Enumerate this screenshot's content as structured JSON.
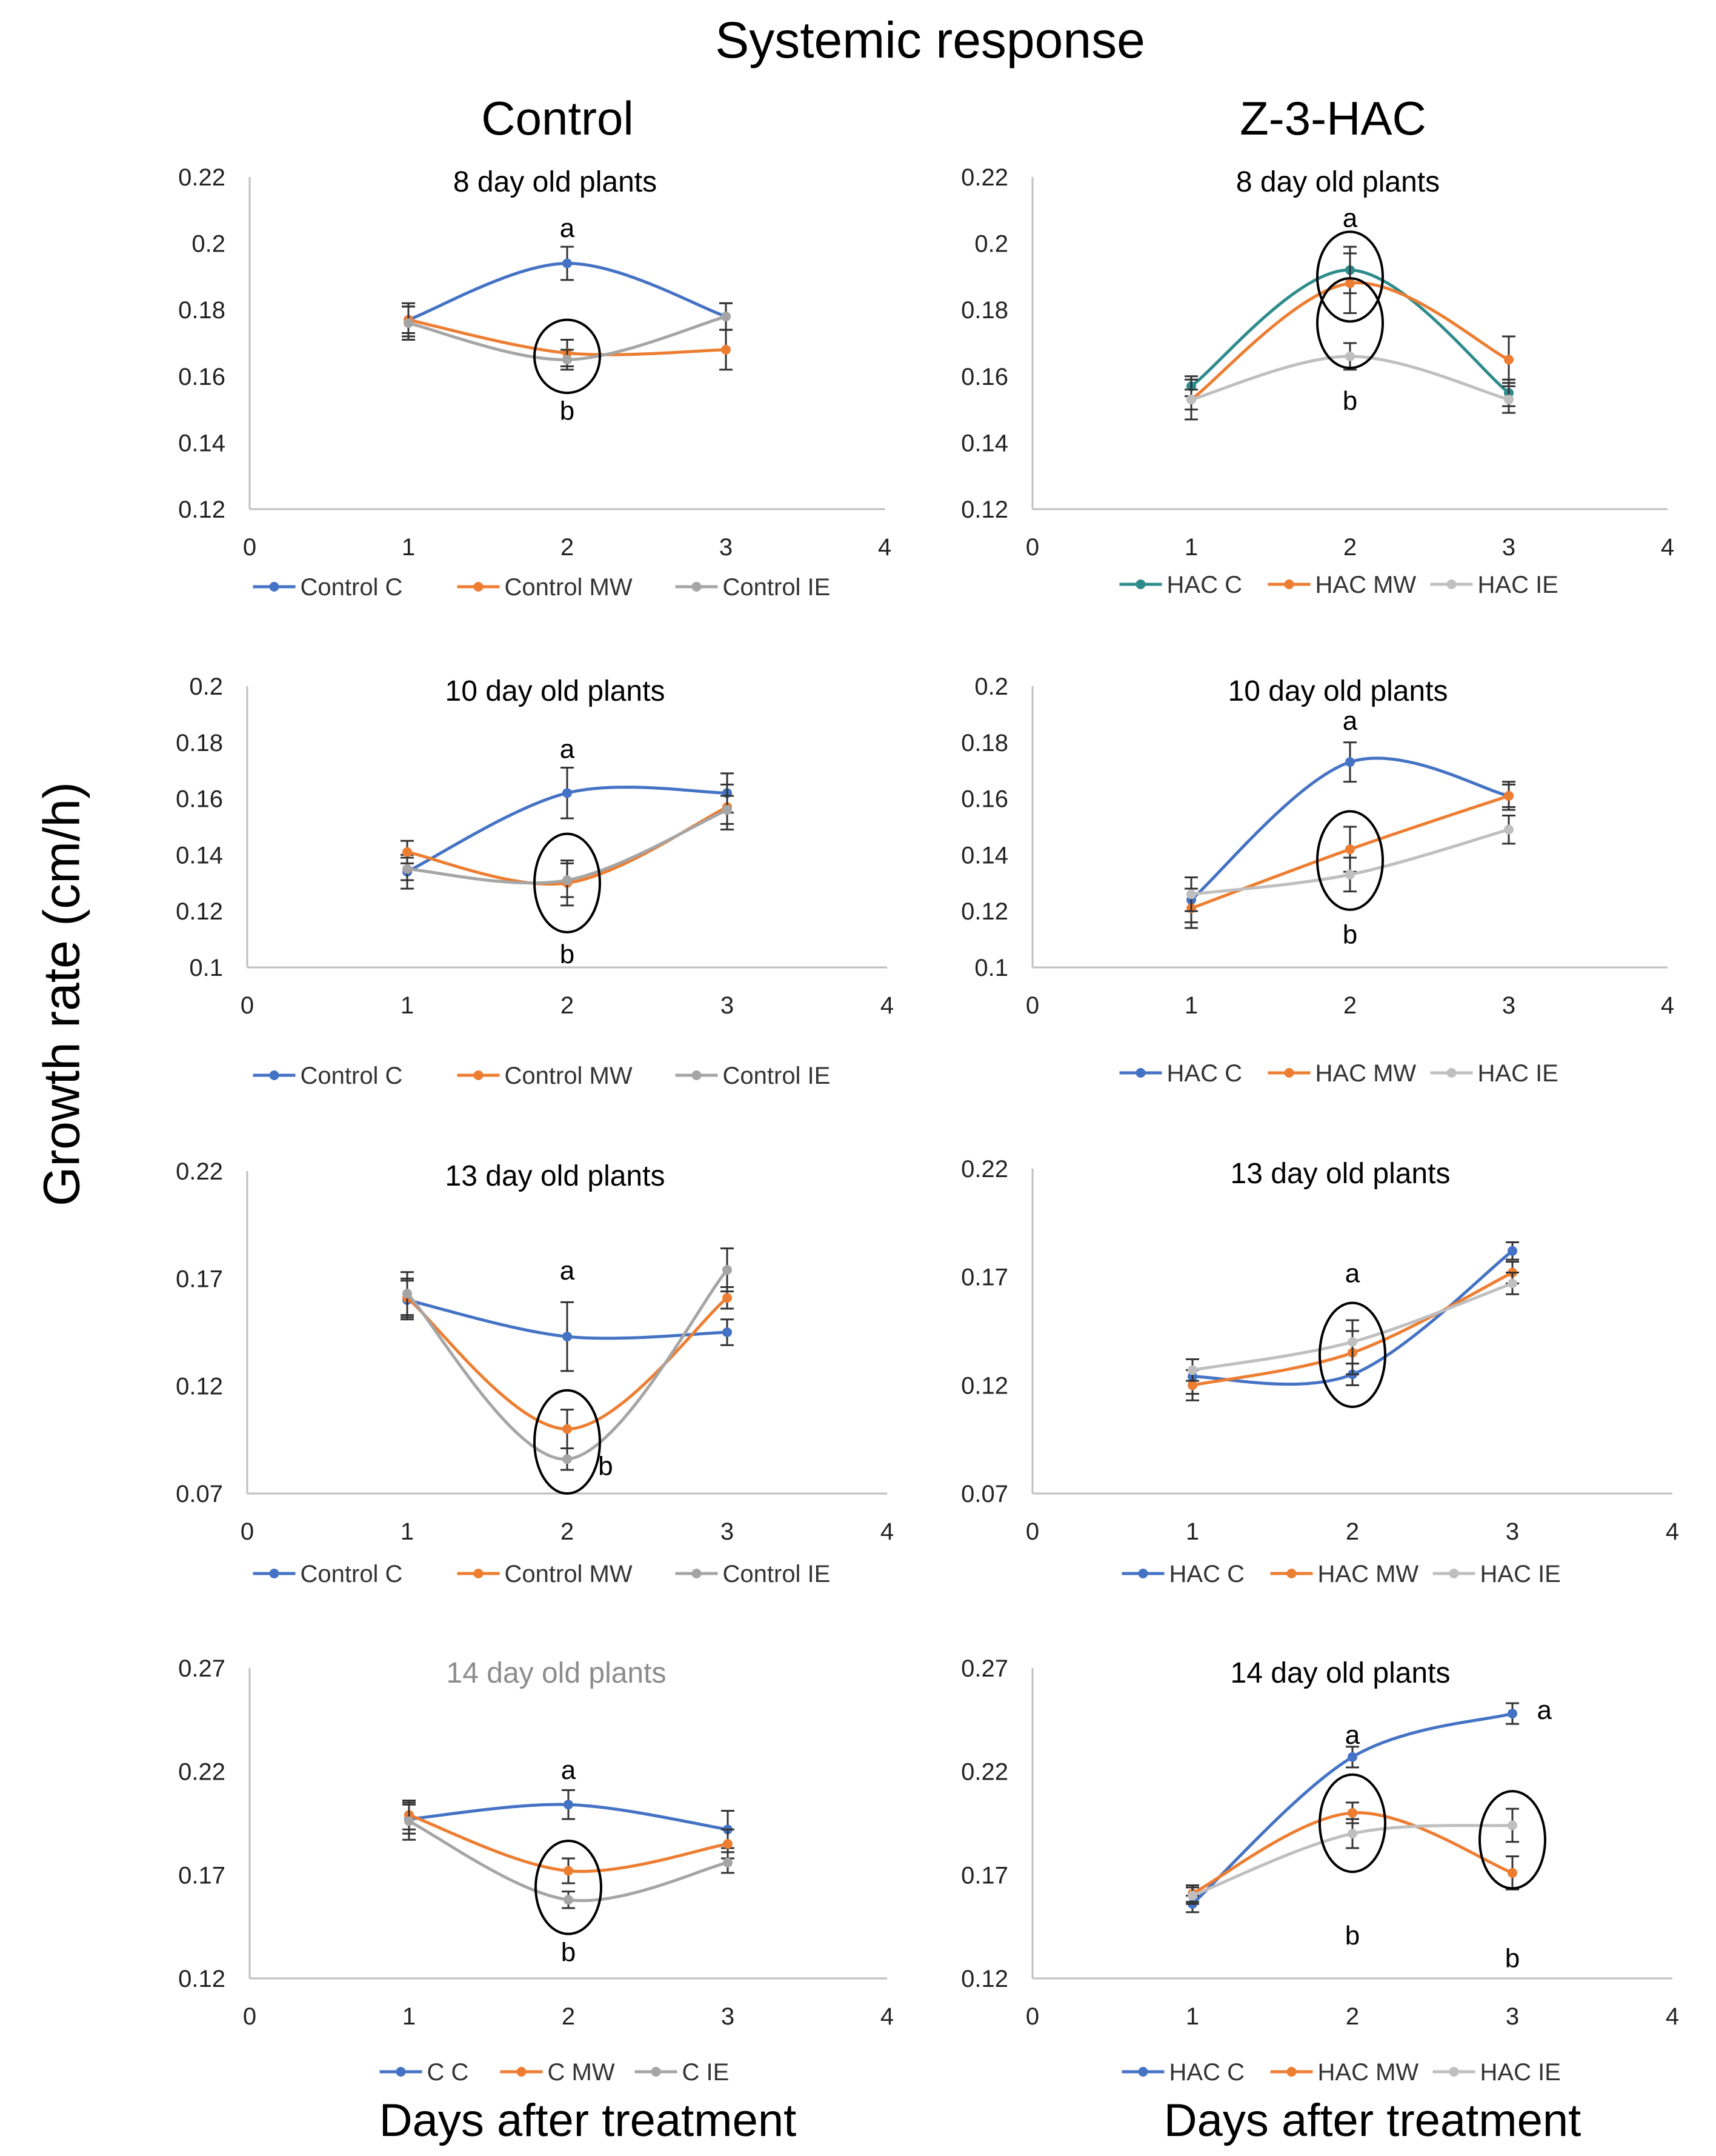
{
  "figure": {
    "title": "Systemic response",
    "column_titles": [
      "Control",
      "Z-3-HAC"
    ],
    "y_axis_label": "Growth rate (cm/h)",
    "x_axis_labels": [
      "Days after treatment",
      "Days after treatment"
    ],
    "colors": {
      "C": "#4472C4",
      "C_teal": "#2E8B8B",
      "MW": "#ED7D31",
      "IE": "#A5A5A5"
    }
  },
  "chart_data": [
    {
      "id": "control-8",
      "type": "line",
      "title": "8 day old plants",
      "title_color": "#000000",
      "x": [
        1,
        2,
        3
      ],
      "xlim": [
        0,
        4
      ],
      "xticks": [
        "0",
        "1",
        "2",
        "3",
        "4"
      ],
      "ylim": [
        0.12,
        0.22
      ],
      "yticks": [
        "0.22",
        "0.2",
        "0.18",
        "0.16",
        "0.14",
        "0.12"
      ],
      "series": [
        {
          "name": "Control C",
          "color": "#4472C4",
          "values": [
            0.177,
            0.194,
            0.178
          ],
          "errors": [
            0.005,
            0.005,
            0.004
          ]
        },
        {
          "name": "Control MW",
          "color": "#ED7D31",
          "values": [
            0.177,
            0.167,
            0.168
          ],
          "errors": [
            0.004,
            0.004,
            0.006
          ]
        },
        {
          "name": "Control IE",
          "color": "#A5A5A5",
          "values": [
            0.176,
            0.165,
            0.178
          ],
          "errors": [
            0.005,
            0.003,
            0.004
          ]
        }
      ],
      "annotations": [
        {
          "text": "a",
          "x": 2,
          "y": 0.2045
        },
        {
          "text": "b",
          "x": 2,
          "y": 0.1495
        }
      ],
      "ellipses": [
        {
          "x": 2,
          "y": 0.166,
          "ry": 0.011
        }
      ]
    },
    {
      "id": "hac-8",
      "type": "line",
      "title": "8 day old plants",
      "title_color": "#000000",
      "x": [
        1,
        2,
        3
      ],
      "xlim": [
        0,
        4
      ],
      "xticks": [
        "0",
        "1",
        "2",
        "3",
        "4"
      ],
      "ylim": [
        0.12,
        0.22
      ],
      "yticks": [
        "0.22",
        "0.2",
        "0.18",
        "0.16",
        "0.14",
        "0.12"
      ],
      "series": [
        {
          "name": "HAC C",
          "color": "#2E8B8B",
          "values": [
            0.157,
            0.192,
            0.155
          ],
          "errors": [
            0.003,
            0.007,
            0.004
          ]
        },
        {
          "name": "HAC MW",
          "color": "#ED7D31",
          "values": [
            0.153,
            0.188,
            0.165
          ],
          "errors": [
            0.003,
            0.009,
            0.007
          ]
        },
        {
          "name": "HAC IE",
          "color": "#BFBFBF",
          "values": [
            0.153,
            0.166,
            0.153
          ],
          "errors": [
            0.006,
            0.004,
            0.004
          ]
        }
      ],
      "annotations": [
        {
          "text": "a",
          "x": 2,
          "y": 0.2075
        },
        {
          "text": "b",
          "x": 2,
          "y": 0.1525
        }
      ],
      "ellipses": [
        {
          "x": 2,
          "y": 0.19,
          "ry": 0.0135
        },
        {
          "x": 2,
          "y": 0.176,
          "ry": 0.0135
        }
      ]
    },
    {
      "id": "control-10",
      "type": "line",
      "title": "10 day old plants",
      "title_color": "#000000",
      "x": [
        1,
        2,
        3
      ],
      "xlim": [
        0,
        4
      ],
      "xticks": [
        "0",
        "1",
        "2",
        "3",
        "4"
      ],
      "ylim": [
        0.1,
        0.2
      ],
      "yticks": [
        "0.2",
        "0.18",
        "0.16",
        "0.14",
        "0.12",
        "0.1"
      ],
      "series": [
        {
          "name": "Control C",
          "color": "#4472C4",
          "values": [
            0.134,
            0.162,
            0.162
          ],
          "errors": [
            0.006,
            0.009,
            0.007
          ]
        },
        {
          "name": "Control MW",
          "color": "#ED7D31",
          "values": [
            0.141,
            0.13,
            0.157
          ],
          "errors": [
            0.004,
            0.008,
            0.008
          ]
        },
        {
          "name": "Control IE",
          "color": "#A5A5A5",
          "values": [
            0.135,
            0.131,
            0.156
          ],
          "errors": [
            0.004,
            0.006,
            0.005
          ]
        }
      ],
      "annotations": [
        {
          "text": "a",
          "x": 2,
          "y": 0.1775
        },
        {
          "text": "b",
          "x": 2,
          "y": 0.1045
        }
      ],
      "ellipses": [
        {
          "x": 2,
          "y": 0.13,
          "ry": 0.0175
        }
      ]
    },
    {
      "id": "hac-10",
      "type": "line",
      "title": "10 day old plants",
      "title_color": "#000000",
      "x": [
        1,
        2,
        3
      ],
      "xlim": [
        0,
        4
      ],
      "xticks": [
        "0",
        "1",
        "2",
        "3",
        "4"
      ],
      "ylim": [
        0.1,
        0.2
      ],
      "yticks": [
        "0.2",
        "0.18",
        "0.16",
        "0.14",
        "0.12",
        "0.1"
      ],
      "series": [
        {
          "name": "HAC C",
          "color": "#4472C4",
          "values": [
            0.124,
            0.173,
            0.161
          ],
          "errors": [
            0.008,
            0.007,
            0.004
          ]
        },
        {
          "name": "HAC MW",
          "color": "#ED7D31",
          "values": [
            0.121,
            0.142,
            0.161
          ],
          "errors": [
            0.007,
            0.008,
            0.005
          ]
        },
        {
          "name": "HAC IE",
          "color": "#BFBFBF",
          "values": [
            0.126,
            0.133,
            0.149
          ],
          "errors": [
            0.006,
            0.006,
            0.005
          ]
        }
      ],
      "annotations": [
        {
          "text": "a",
          "x": 2,
          "y": 0.1875
        },
        {
          "text": "b",
          "x": 2,
          "y": 0.1115
        }
      ],
      "ellipses": [
        {
          "x": 2,
          "y": 0.138,
          "ry": 0.0175
        }
      ]
    },
    {
      "id": "control-13",
      "type": "line",
      "title": "13 day old plants",
      "title_color": "#000000",
      "x": [
        1,
        2,
        3
      ],
      "xlim": [
        0,
        4
      ],
      "xticks": [
        "0",
        "1",
        "2",
        "3",
        "4"
      ],
      "ylim": [
        0.07,
        0.22
      ],
      "yticks": [
        "0.22",
        "0.17",
        "0.12",
        "0.07"
      ],
      "series": [
        {
          "name": "Control C",
          "color": "#4472C4",
          "values": [
            0.16,
            0.143,
            0.145
          ],
          "errors": [
            0.009,
            0.016,
            0.006
          ]
        },
        {
          "name": "Control MW",
          "color": "#ED7D31",
          "values": [
            0.161,
            0.1,
            0.161
          ],
          "errors": [
            0.009,
            0.009,
            0.005
          ]
        },
        {
          "name": "Control IE",
          "color": "#A5A5A5",
          "values": [
            0.163,
            0.086,
            0.174
          ],
          "errors": [
            0.01,
            0.005,
            0.01
          ]
        }
      ],
      "annotations": [
        {
          "text": "a",
          "x": 2,
          "y": 0.1735
        },
        {
          "text": "b",
          "x": 2.24,
          "y": 0.0825
        }
      ],
      "ellipses": [
        {
          "x": 2,
          "y": 0.094,
          "ry": 0.024
        }
      ]
    },
    {
      "id": "hac-13",
      "type": "line",
      "title": "13 day old plants",
      "title_color": "#000000",
      "x": [
        1,
        2,
        3
      ],
      "xlim": [
        0,
        4
      ],
      "xticks": [
        "0",
        "1",
        "2",
        "3",
        "4"
      ],
      "ylim": [
        0.07,
        0.22
      ],
      "yticks": [
        "0.22",
        "0.17",
        "0.12",
        "0.07"
      ],
      "series": [
        {
          "name": "HAC C",
          "color": "#4472C4",
          "values": [
            0.124,
            0.125,
            0.182
          ],
          "errors": [
            0.008,
            0.005,
            0.004
          ]
        },
        {
          "name": "HAC MW",
          "color": "#ED7D31",
          "values": [
            0.12,
            0.135,
            0.172
          ],
          "errors": [
            0.007,
            0.01,
            0.005
          ]
        },
        {
          "name": "HAC IE",
          "color": "#BFBFBF",
          "values": [
            0.127,
            0.14,
            0.167
          ],
          "errors": [
            0.005,
            0.01,
            0.005
          ]
        }
      ],
      "annotations": [
        {
          "text": "a",
          "x": 2,
          "y": 0.1715
        }
      ],
      "ellipses": [
        {
          "x": 2,
          "y": 0.134,
          "ry": 0.024
        }
      ]
    },
    {
      "id": "control-14",
      "type": "line",
      "title": "14 day old plants",
      "title_color": "#8C8C8C",
      "x": [
        1,
        2,
        3
      ],
      "xlim": [
        0,
        4
      ],
      "xticks": [
        "0",
        "1",
        "2",
        "3",
        "4"
      ],
      "ylim": [
        0.12,
        0.27
      ],
      "yticks": [
        "0.27",
        "0.22",
        "0.17",
        "0.12"
      ],
      "series": [
        {
          "name": "C C",
          "color": "#4472C4",
          "values": [
            0.197,
            0.204,
            0.192
          ],
          "errors": [
            0.007,
            0.007,
            0.009
          ]
        },
        {
          "name": "C MW",
          "color": "#ED7D31",
          "values": [
            0.199,
            0.172,
            0.185
          ],
          "errors": [
            0.007,
            0.006,
            0.007
          ]
        },
        {
          "name": "C IE",
          "color": "#A5A5A5",
          "values": [
            0.196,
            0.158,
            0.176
          ],
          "errors": [
            0.009,
            0.004,
            0.005
          ]
        }
      ],
      "annotations": [
        {
          "text": "a",
          "x": 2,
          "y": 0.2205
        },
        {
          "text": "b",
          "x": 2,
          "y": 0.1325
        }
      ],
      "ellipses": [
        {
          "x": 2,
          "y": 0.164,
          "ry": 0.0225
        }
      ]
    },
    {
      "id": "hac-14",
      "type": "line",
      "title": "14 day old plants",
      "title_color": "#000000",
      "x": [
        1,
        2,
        3
      ],
      "xlim": [
        0,
        4
      ],
      "xticks": [
        "0",
        "1",
        "2",
        "3",
        "4"
      ],
      "ylim": [
        0.12,
        0.27
      ],
      "yticks": [
        "0.27",
        "0.22",
        "0.17",
        "0.12"
      ],
      "series": [
        {
          "name": "HAC C",
          "color": "#4472C4",
          "values": [
            0.156,
            0.227,
            0.248
          ],
          "errors": [
            0.004,
            0.005,
            0.005
          ]
        },
        {
          "name": "HAC MW",
          "color": "#ED7D31",
          "values": [
            0.161,
            0.2,
            0.171
          ],
          "errors": [
            0.004,
            0.005,
            0.008
          ]
        },
        {
          "name": "HAC IE",
          "color": "#BFBFBF",
          "values": [
            0.16,
            0.19,
            0.194
          ],
          "errors": [
            0.004,
            0.007,
            0.008
          ]
        }
      ],
      "annotations": [
        {
          "text": "a",
          "x": 2,
          "y": 0.2375
        },
        {
          "text": "a",
          "x": 3.2,
          "y": 0.2495
        },
        {
          "text": "b",
          "x": 2,
          "y": 0.1405
        },
        {
          "text": "b",
          "x": 3,
          "y": 0.1295
        }
      ],
      "ellipses": [
        {
          "x": 2,
          "y": 0.195,
          "ry": 0.0235
        },
        {
          "x": 3,
          "y": 0.187,
          "ry": 0.0235
        }
      ]
    }
  ]
}
